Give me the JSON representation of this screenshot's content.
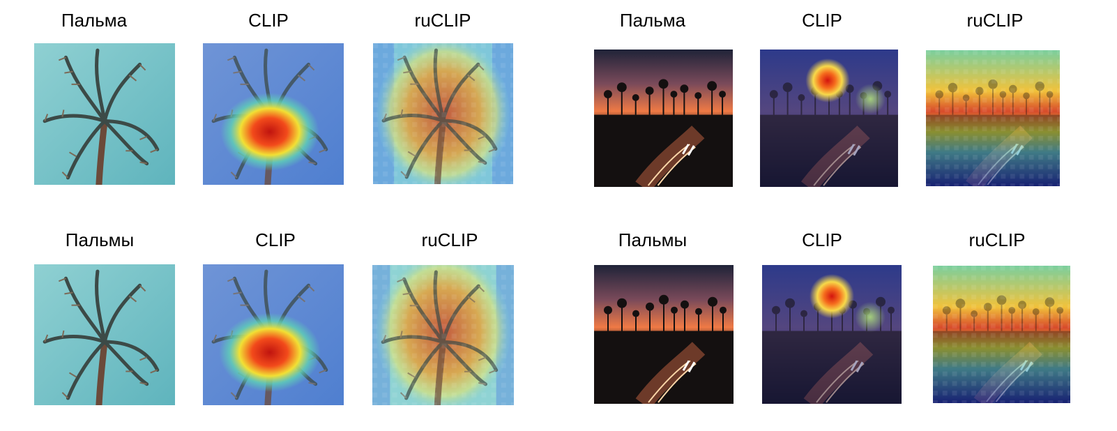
{
  "figure": {
    "left": {
      "rows": [
        {
          "labels": [
            "Пальма",
            "CLIP",
            "ruCLIP"
          ]
        },
        {
          "labels": [
            "Пальмы",
            "CLIP",
            "ruCLIP"
          ]
        }
      ]
    },
    "right": {
      "rows": [
        {
          "labels": [
            "Пальма",
            "CLIP",
            "ruCLIP"
          ]
        },
        {
          "labels": [
            "Пальмы",
            "CLIP",
            "ruCLIP"
          ]
        }
      ]
    }
  },
  "colors": {
    "sky": "#7cc2c6",
    "sunset_orange": "#e46a3c",
    "heat_red": "#d7191c",
    "heat_yellow": "#fdd835",
    "cool_blue": "#3f6fd0"
  },
  "icons": {
    "palm": "palm-tree-icon"
  }
}
